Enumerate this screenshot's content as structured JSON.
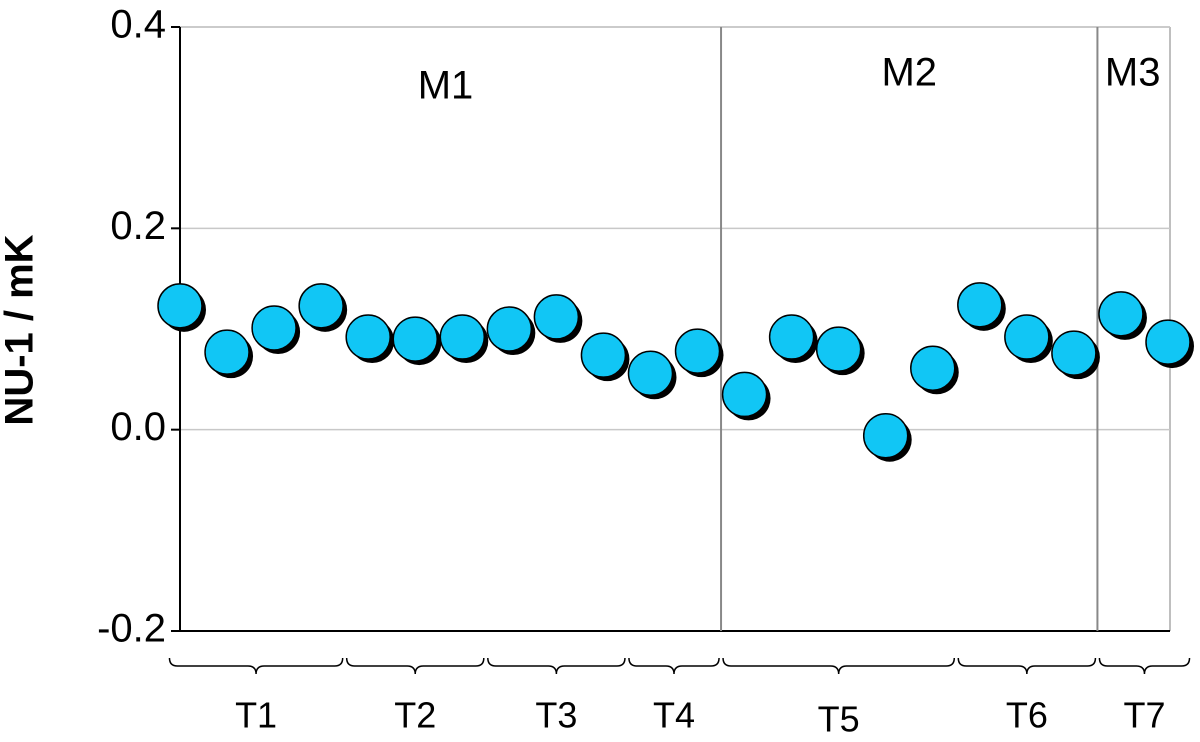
{
  "chart_data": {
    "type": "scatter",
    "y_label": "NU-1 / mK",
    "x": [
      1,
      2,
      3,
      4,
      5,
      6,
      7,
      8,
      9,
      10,
      11,
      12,
      13,
      14,
      15,
      16,
      17,
      18,
      19,
      20,
      21,
      22
    ],
    "values": [
      0.123,
      0.077,
      0.101,
      0.123,
      0.092,
      0.09,
      0.092,
      0.1,
      0.112,
      0.074,
      0.056,
      0.078,
      0.035,
      0.092,
      0.08,
      -0.006,
      0.061,
      0.124,
      0.092,
      0.076,
      0.115,
      0.087
    ],
    "color": "#11c6f5",
    "xlim": [
      1,
      22
    ],
    "ylim": [
      -0.2,
      0.4
    ],
    "yticks": [
      -0.2,
      {
        "value": 0,
        "label": "0.0"
      },
      0.2,
      0.4
    ],
    "grid": true,
    "sections": [
      {
        "label": "M1",
        "from": 1,
        "to": 12
      },
      {
        "label": "M2",
        "from": 13,
        "to": 20
      },
      {
        "label": "M3",
        "from": 21,
        "to": 22
      }
    ],
    "groups": [
      {
        "label": "T1",
        "from": 1,
        "to": 4
      },
      {
        "label": "T2",
        "from": 5,
        "to": 7
      },
      {
        "label": "T3",
        "from": 8,
        "to": 10
      },
      {
        "label": "T4",
        "from": 11,
        "to": 12
      },
      {
        "label": "T5",
        "from": 13,
        "to": 17
      },
      {
        "label": "T6",
        "from": 18,
        "to": 20
      },
      {
        "label": "T7",
        "from": 21,
        "to": 22
      }
    ]
  }
}
